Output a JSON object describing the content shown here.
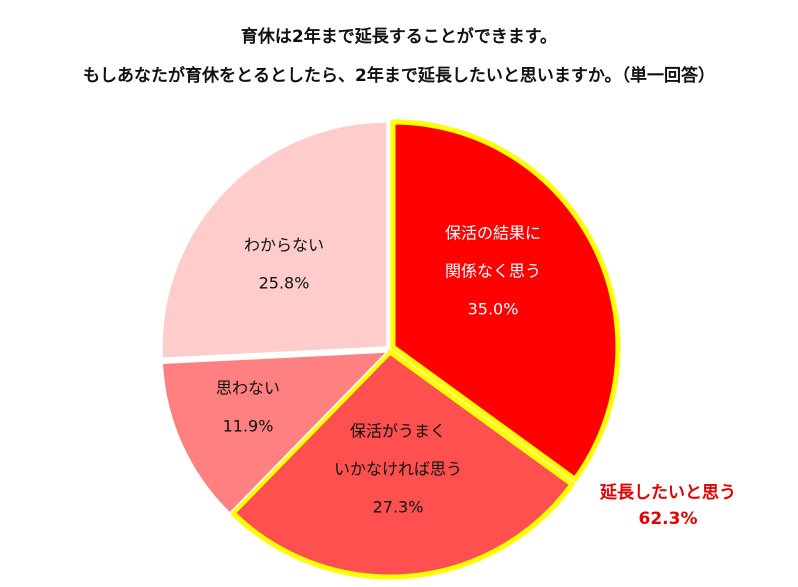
{
  "title_line1": "育休は2年まで延長することができます。",
  "title_line2": "もしあなたが育休をとるとしたら、2年まで延長したいと思いますか。（単一回答）",
  "chart_data": {
    "type": "pie",
    "title": "育休は2年まで延長することができます。もしあなたが育休をとるとしたら、2年まで延長したいと思いますか。（単一回答）",
    "slices": [
      {
        "lines": [
          "保活の結果に",
          "関係なく思う"
        ],
        "value": 35.0,
        "value_label": "35.0%",
        "color": "#ff0000",
        "text_color": "#ffffff",
        "highlight": true
      },
      {
        "lines": [
          "保活がうまく",
          "いかなければ思う"
        ],
        "value": 27.3,
        "value_label": "27.3%",
        "color": "#ff5050",
        "text_color": "#111111",
        "highlight": true
      },
      {
        "lines": [
          "思わない"
        ],
        "value": 11.9,
        "value_label": "11.9%",
        "color": "#ff8080",
        "text_color": "#111111",
        "highlight": false
      },
      {
        "lines": [
          "わからない"
        ],
        "value": 25.8,
        "value_label": "25.8%",
        "color": "#ffcccc",
        "text_color": "#111111",
        "highlight": false
      }
    ],
    "group_callout": {
      "label": "延長したいと思う",
      "value": 62.3,
      "value_label": "62.3%",
      "color": "#e00000",
      "outline_color": "#ffff00"
    }
  }
}
